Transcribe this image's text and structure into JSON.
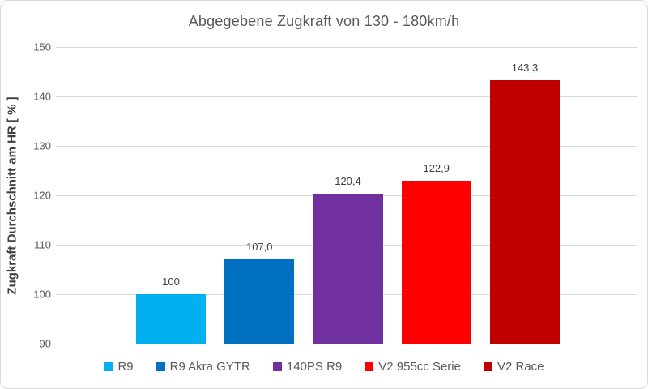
{
  "chart_data": {
    "type": "bar",
    "title": "Abgegebene Zugkraft von 130 - 180km/h",
    "ylabel": "Zugkraft Durchschnitt am HR [ % ]",
    "xlabel": "",
    "ylim": [
      90,
      150
    ],
    "yticks": [
      90,
      100,
      110,
      120,
      130,
      140,
      150
    ],
    "grid": true,
    "legend_position": "bottom",
    "categories": [
      "R9",
      "R9 Akra GYTR",
      "140PS R9",
      "V2 955cc Serie",
      "V2 Race"
    ],
    "values": [
      100,
      107.0,
      120.4,
      122.9,
      143.3
    ],
    "value_labels": [
      "100",
      "107,0",
      "120,4",
      "122,9",
      "143,3"
    ],
    "bar_colors": [
      "#00b0f0",
      "#0070c0",
      "#7030a0",
      "#ff0000",
      "#c00000"
    ]
  },
  "colors": {
    "background": "#ffffff",
    "border": "#d9d9d9",
    "gridline": "#d9d9d9",
    "title_text": "#595959",
    "axis_text": "#595959",
    "value_label_text": "#404040"
  }
}
